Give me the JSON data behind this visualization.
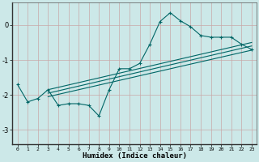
{
  "xlabel": "Humidex (Indice chaleur)",
  "ylabel": "",
  "bg_color": "#cce8e8",
  "grid_color": "#c8a8a8",
  "line_color": "#006666",
  "xlim": [
    -0.5,
    23.5
  ],
  "ylim": [
    -3.4,
    0.65
  ],
  "yticks": [
    0,
    -1,
    -2,
    -3
  ],
  "xticks": [
    0,
    1,
    2,
    3,
    4,
    5,
    6,
    7,
    8,
    9,
    10,
    11,
    12,
    13,
    14,
    15,
    16,
    17,
    18,
    19,
    20,
    21,
    22,
    23
  ],
  "line1_x": [
    0,
    1,
    2,
    3,
    4,
    5,
    6,
    7,
    8,
    9,
    10,
    11,
    12,
    13,
    14,
    15,
    16,
    17,
    18,
    19,
    20,
    21,
    22,
    23
  ],
  "line1_y": [
    -1.7,
    -2.2,
    -2.1,
    -1.85,
    -2.3,
    -2.25,
    -2.25,
    -2.3,
    -2.6,
    -1.85,
    -1.25,
    -1.25,
    -1.1,
    -0.55,
    0.1,
    0.35,
    0.12,
    -0.05,
    -0.3,
    -0.35,
    -0.35,
    -0.35,
    -0.55,
    -0.7
  ],
  "reg_lines": [
    {
      "x": [
        3,
        23
      ],
      "y": [
        -1.85,
        -0.5
      ]
    },
    {
      "x": [
        3,
        23
      ],
      "y": [
        -1.95,
        -0.6
      ]
    },
    {
      "x": [
        3,
        23
      ],
      "y": [
        -2.05,
        -0.72
      ]
    }
  ],
  "figsize": [
    3.2,
    2.0
  ],
  "dpi": 100
}
